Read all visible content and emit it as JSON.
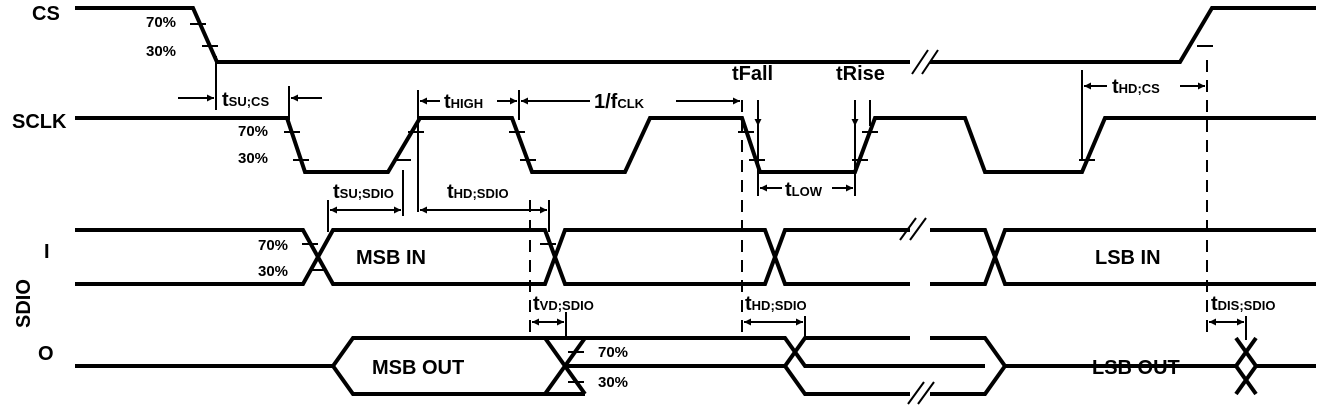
{
  "signals": {
    "cs": "CS",
    "sclk": "SCLK",
    "sdio": "SDIO",
    "sdio_in": "I",
    "sdio_out": "O"
  },
  "thresholds": {
    "high": "70%",
    "low": "30%"
  },
  "bus_labels": {
    "msb_in": "MSB IN",
    "lsb_in": "LSB IN",
    "msb_out": "MSB OUT",
    "lsb_out": "LSB OUT"
  },
  "timing": {
    "tsu_cs": {
      "main": "t",
      "sub": "SU;CS"
    },
    "thigh": {
      "main": "t",
      "sub": "HIGH"
    },
    "fclk": {
      "main": "1/f",
      "sub": "CLK"
    },
    "tfall": "tFall",
    "trise": "tRise",
    "thd_cs": {
      "main": "t",
      "sub": "HD;CS"
    },
    "tsu_sdio": {
      "main": "t",
      "sub": "SU;SDIO"
    },
    "thd_sdio": {
      "main": "t",
      "sub": "HD;SDIO"
    },
    "tlow": {
      "main": "t",
      "sub": "LOW"
    },
    "tvd_sdio": {
      "main": "t",
      "sub": "VD;SDIO"
    },
    "thd_sdio_out": {
      "main": "t",
      "sub": "HD;SDIO"
    },
    "tdis_sdio": {
      "main": "t",
      "sub": "DIS;SDIO"
    }
  }
}
